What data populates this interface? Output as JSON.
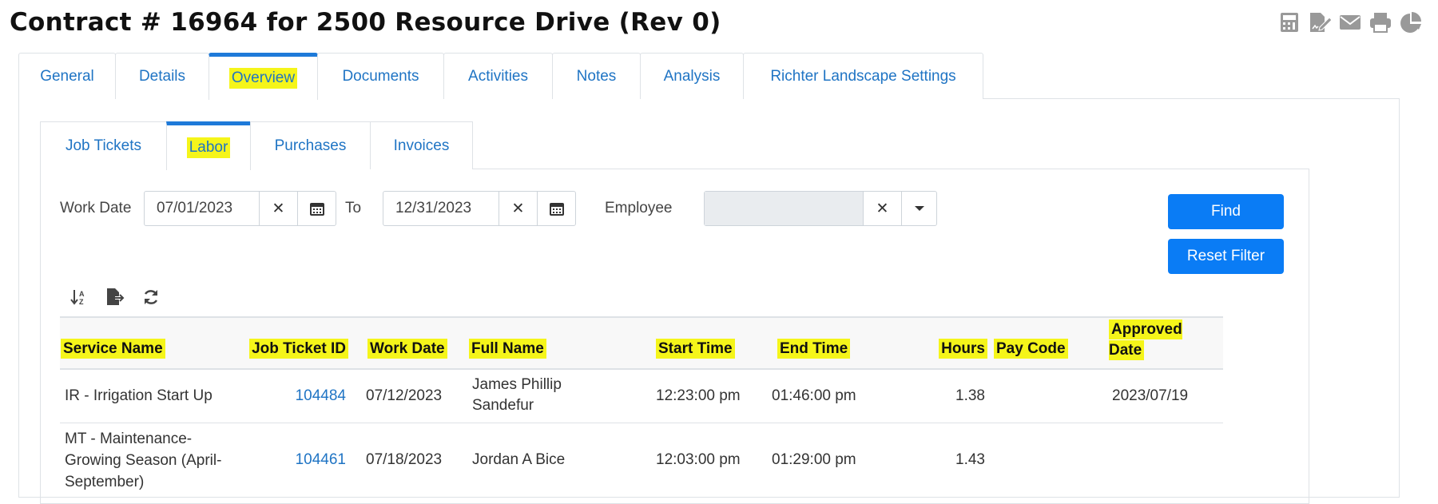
{
  "title": "Contract # 16964 for 2500 Resource Drive (Rev 0)",
  "top_icons": [
    "calculator-icon",
    "signature-icon",
    "envelope-icon",
    "print-icon",
    "pie-chart-icon"
  ],
  "tabs": [
    "General",
    "Details",
    "Overview",
    "Documents",
    "Activities",
    "Notes",
    "Analysis",
    "Richter Landscape Settings"
  ],
  "active_tab": "Overview",
  "subtabs": [
    "Job Tickets",
    "Labor",
    "Purchases",
    "Invoices"
  ],
  "active_subtab": "Labor",
  "filters": {
    "work_date_label": "Work Date",
    "from": "07/01/2023",
    "to_label": "To",
    "to": "12/31/2023",
    "employee_label": "Employee",
    "employee": ""
  },
  "buttons": {
    "find": "Find",
    "reset": "Reset Filter"
  },
  "colors": {
    "accent": "#0a7cf5",
    "link": "#1f74c4",
    "highlight": "#f5f51a"
  },
  "table": {
    "headers": [
      "Service Name",
      "Job Ticket ID",
      "Work Date",
      "Full Name",
      "Start Time",
      "End Time",
      "Hours",
      "Pay Code",
      "Approved Date"
    ],
    "rows": [
      {
        "service": "IR - Irrigation Start Up",
        "ticket": "104484",
        "date": "07/12/2023",
        "name": "James Phillip Sandefur",
        "start": "12:23:00 pm",
        "end": "01:46:00 pm",
        "hours": "1.38",
        "pay": "",
        "approved": "2023/07/19"
      },
      {
        "service": "MT - Maintenance-Growing Season (April-September)",
        "ticket": "104461",
        "date": "07/18/2023",
        "name": "Jordan A Bice",
        "start": "12:03:00 pm",
        "end": "01:29:00 pm",
        "hours": "1.43",
        "pay": "",
        "approved": ""
      }
    ]
  }
}
